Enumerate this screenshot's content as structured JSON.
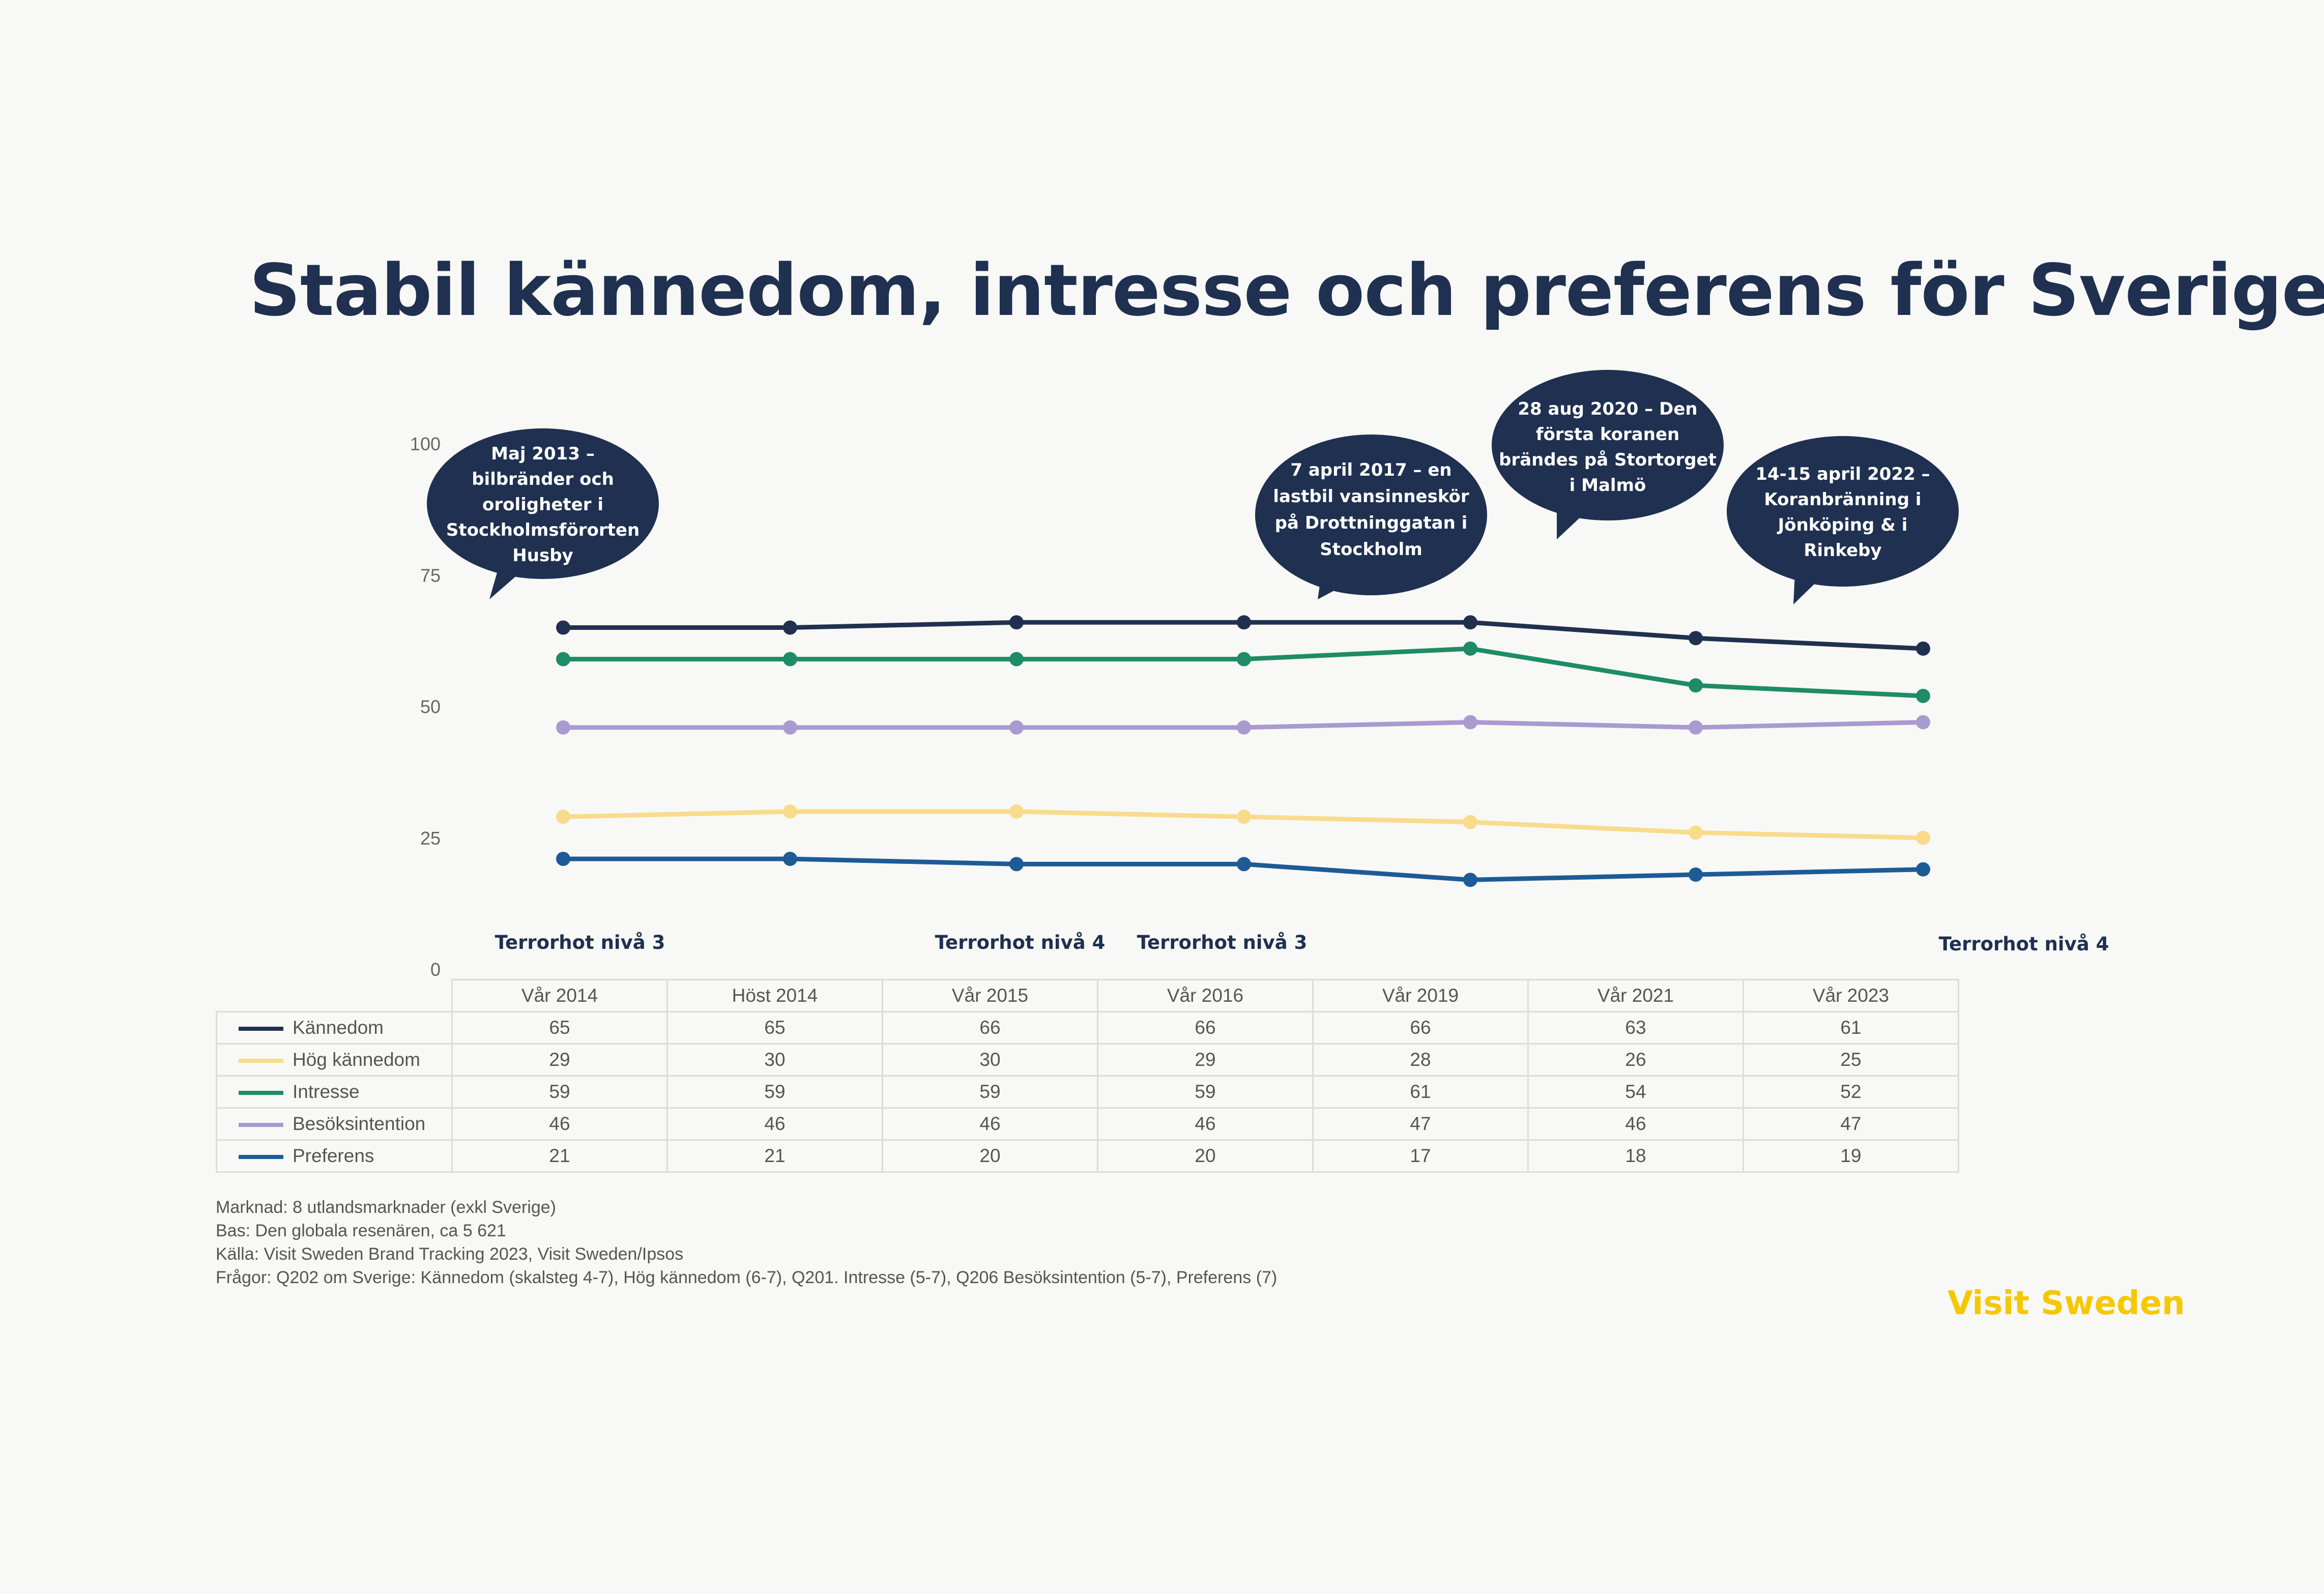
{
  "title": "Stabil kännedom, intresse och preferens för Sverige",
  "chart_data": {
    "type": "line",
    "categories": [
      "Vår 2014",
      "Höst 2014",
      "Vår 2015",
      "Vår 2016",
      "Vår 2019",
      "Vår 2021",
      "Vår 2023"
    ],
    "ylim": [
      0,
      100
    ],
    "yticks": [
      "0",
      "25",
      "50",
      "75",
      "100"
    ],
    "series": [
      {
        "name": "Kännedom",
        "color": "#22304f",
        "values": [
          65,
          65,
          66,
          66,
          66,
          63,
          61
        ]
      },
      {
        "name": "Hög kännedom",
        "color": "#f8dc8c",
        "values": [
          29,
          30,
          30,
          29,
          28,
          26,
          25
        ]
      },
      {
        "name": "Intresse",
        "color": "#1e8c66",
        "values": [
          59,
          59,
          59,
          59,
          61,
          54,
          52
        ]
      },
      {
        "name": "Besöksintention",
        "color": "#a99ad0",
        "values": [
          46,
          46,
          46,
          46,
          47,
          46,
          47
        ]
      },
      {
        "name": "Preferens",
        "color": "#1d5b96",
        "values": [
          21,
          21,
          20,
          20,
          17,
          18,
          19
        ]
      }
    ],
    "annotations": [
      {
        "lines": [
          "Maj 2013 –",
          "bilbränder och",
          "oroligheter i",
          "Stockholmsförorten",
          "Husby"
        ]
      },
      {
        "lines": [
          "7 april 2017 – en",
          "lastbil vansinneskör",
          "på Drottninggatan i",
          "Stockholm"
        ]
      },
      {
        "lines": [
          "28 aug 2020 – Den",
          "första koranen",
          "brändes på Stortorget",
          "i Malmö"
        ]
      },
      {
        "lines": [
          "14-15 april 2022 –",
          "Koranbränning i",
          "Jönköping & i",
          "Rinkeby"
        ]
      }
    ],
    "terror_labels": [
      "Terrorhot nivå 3",
      "Terrorhot nivå 4",
      "Terrorhot nivå 3",
      "Terrorhot nivå 4"
    ]
  },
  "table": {
    "columns": [
      "Vår 2014",
      "Höst 2014",
      "Vår 2015",
      "Vår 2016",
      "Vår 2019",
      "Vår 2021",
      "Vår 2023"
    ],
    "rows": [
      {
        "label": "Kännedom",
        "color": "#22304f",
        "values": [
          "65",
          "65",
          "66",
          "66",
          "66",
          "63",
          "61"
        ]
      },
      {
        "label": "Hög kännedom",
        "color": "#f8dc8c",
        "values": [
          "29",
          "30",
          "30",
          "29",
          "28",
          "26",
          "25"
        ]
      },
      {
        "label": "Intresse",
        "color": "#1e8c66",
        "values": [
          "59",
          "59",
          "59",
          "59",
          "61",
          "54",
          "52"
        ]
      },
      {
        "label": "Besöksintention",
        "color": "#a99ad0",
        "values": [
          "46",
          "46",
          "46",
          "46",
          "47",
          "46",
          "47"
        ]
      },
      {
        "label": "Preferens",
        "color": "#1d5b96",
        "values": [
          "21",
          "21",
          "20",
          "20",
          "17",
          "18",
          "19"
        ]
      }
    ]
  },
  "notes": [
    "Marknad: 8 utlandsmarknader (exkl Sverige)",
    "Bas: Den globala resenären, ca 5 621",
    "Källa: Visit Sweden Brand Tracking 2023, Visit Sweden/Ipsos",
    "Frågor: Q202 om Sverige: Kännedom (skalsteg 4-7), Hög kännedom (6-7), Q201. Intresse (5-7), Q206 Besöksintention (5-7), Preferens (7)"
  ],
  "logo": "Visit Sweden",
  "colors": {
    "title": "#1f3050",
    "bubble": "#1f3050",
    "logo": "#f5c800"
  }
}
